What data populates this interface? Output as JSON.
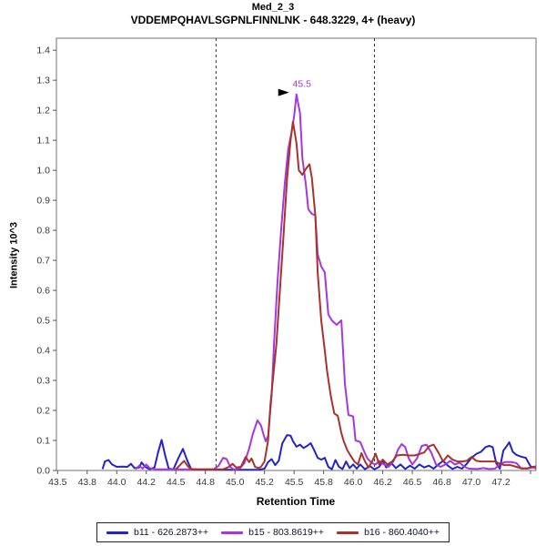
{
  "header": {
    "title": "Med_2_3",
    "subtitle": "VDDEMPQHAVLSGPNLFINNLNK - 648.3229, 4+ (heavy)"
  },
  "chart_data": {
    "type": "line",
    "title": "Med_2_3",
    "subtitle": "VDDEMPQHAVLSGPNLFINNLNK - 648.3229, 4+ (heavy)",
    "xlabel": "Retention Time",
    "ylabel": "Intensity 10^3",
    "xlim": [
      43.49,
      47.546
    ],
    "ylim": [
      0,
      1.44
    ],
    "grid": false,
    "legend_position": "bottom",
    "frame_color": "#8a8a8a",
    "boundary_lines": {
      "color": "#333333",
      "values": [
        44.84,
        46.18
      ]
    },
    "annotation": {
      "text": "45.5",
      "x": 45.52,
      "y": 1.253,
      "color": "#A636E0",
      "arrow_color": "#000000"
    },
    "x_ticks": [
      {
        "v": 43.5,
        "label": "43.5"
      },
      {
        "v": 43.75,
        "label": "43.8"
      },
      {
        "v": 44.0,
        "label": "44.0"
      },
      {
        "v": 44.25,
        "label": "44.2"
      },
      {
        "v": 44.5,
        "label": "44.5"
      },
      {
        "v": 44.75,
        "label": "44.8"
      },
      {
        "v": 45.0,
        "label": "45.0"
      },
      {
        "v": 45.25,
        "label": "45.2"
      },
      {
        "v": 45.5,
        "label": "45.5"
      },
      {
        "v": 45.75,
        "label": "45.8"
      },
      {
        "v": 46.0,
        "label": "46.0"
      },
      {
        "v": 46.25,
        "label": "46.2"
      },
      {
        "v": 46.5,
        "label": "46.5"
      },
      {
        "v": 46.75,
        "label": "46.8"
      },
      {
        "v": 47.0,
        "label": "47.0"
      },
      {
        "v": 47.25,
        "label": "47.2"
      },
      {
        "v": 47.5,
        "label": ""
      }
    ],
    "y_ticks": [
      {
        "v": 0.0,
        "label": "0.0"
      },
      {
        "v": 0.1,
        "label": "0.1"
      },
      {
        "v": 0.2,
        "label": "0.2"
      },
      {
        "v": 0.3,
        "label": "0.3"
      },
      {
        "v": 0.4,
        "label": "0.4"
      },
      {
        "v": 0.5,
        "label": "0.5"
      },
      {
        "v": 0.6,
        "label": "0.6"
      },
      {
        "v": 0.7,
        "label": "0.7"
      },
      {
        "v": 0.8,
        "label": "0.8"
      },
      {
        "v": 0.9,
        "label": "0.9"
      },
      {
        "v": 1.0,
        "label": "1.0"
      },
      {
        "v": 1.1,
        "label": "1.1"
      },
      {
        "v": 1.2,
        "label": "1.2"
      },
      {
        "v": 1.3,
        "label": "1.3"
      },
      {
        "v": 1.4,
        "label": "1.4"
      }
    ],
    "series": [
      {
        "name": "b11 - 626.2873++",
        "color": "#2323CE",
        "points": [
          [
            43.88,
            0.005
          ],
          [
            43.9,
            0.03
          ],
          [
            43.93,
            0.035
          ],
          [
            43.96,
            0.02
          ],
          [
            44.0,
            0.012
          ],
          [
            44.05,
            0.013
          ],
          [
            44.09,
            0.012
          ],
          [
            44.12,
            0.022
          ],
          [
            44.15,
            0.008
          ],
          [
            44.19,
            0.01
          ],
          [
            44.21,
            0.027
          ],
          [
            44.24,
            0.012
          ],
          [
            44.28,
            0.004
          ],
          [
            44.32,
            0.01
          ],
          [
            44.35,
            0.06
          ],
          [
            44.38,
            0.102
          ],
          [
            44.41,
            0.05
          ],
          [
            44.44,
            0.006
          ],
          [
            44.48,
            0.004
          ],
          [
            44.52,
            0.04
          ],
          [
            44.56,
            0.072
          ],
          [
            44.6,
            0.03
          ],
          [
            44.63,
            0.005
          ],
          [
            44.7,
            0.002
          ],
          [
            45.2,
            0.002
          ],
          [
            45.25,
            0.006
          ],
          [
            45.28,
            0.028
          ],
          [
            45.31,
            0.038
          ],
          [
            45.34,
            0.018
          ],
          [
            45.37,
            0.032
          ],
          [
            45.4,
            0.09
          ],
          [
            45.44,
            0.118
          ],
          [
            45.47,
            0.116
          ],
          [
            45.49,
            0.098
          ],
          [
            45.52,
            0.079
          ],
          [
            45.55,
            0.086
          ],
          [
            45.58,
            0.075
          ],
          [
            45.61,
            0.082
          ],
          [
            45.64,
            0.091
          ],
          [
            45.67,
            0.068
          ],
          [
            45.7,
            0.042
          ],
          [
            45.73,
            0.036
          ],
          [
            45.76,
            0.042
          ],
          [
            45.79,
            0.012
          ],
          [
            45.82,
            0.004
          ],
          [
            45.85,
            0.035
          ],
          [
            45.88,
            0.012
          ],
          [
            45.91,
            0.005
          ],
          [
            45.94,
            0.03
          ],
          [
            45.97,
            0.008
          ],
          [
            46.0,
            0.02
          ],
          [
            46.03,
            0.006
          ],
          [
            46.06,
            0.02
          ],
          [
            46.1,
            0.004
          ],
          [
            46.14,
            0.015
          ],
          [
            46.18,
            0.004
          ],
          [
            46.22,
            0.012
          ],
          [
            46.25,
            0.03
          ],
          [
            46.28,
            0.01
          ],
          [
            46.32,
            0.026
          ],
          [
            46.36,
            0.008
          ],
          [
            46.4,
            0.02
          ],
          [
            46.44,
            0.005
          ],
          [
            46.48,
            0.016
          ],
          [
            46.52,
            0.006
          ],
          [
            46.56,
            0.02
          ],
          [
            46.6,
            0.01
          ],
          [
            46.64,
            0.016
          ],
          [
            46.68,
            0.006
          ],
          [
            46.72,
            0.02
          ],
          [
            46.76,
            0.032
          ],
          [
            46.8,
            0.016
          ],
          [
            46.84,
            0.005
          ],
          [
            46.88,
            0.012
          ],
          [
            46.92,
            0.006
          ],
          [
            46.96,
            0.022
          ],
          [
            47.0,
            0.042
          ],
          [
            47.04,
            0.055
          ],
          [
            47.08,
            0.062
          ],
          [
            47.12,
            0.078
          ],
          [
            47.15,
            0.082
          ],
          [
            47.18,
            0.078
          ],
          [
            47.21,
            0.024
          ],
          [
            47.24,
            0.006
          ],
          [
            47.27,
            0.066
          ],
          [
            47.3,
            0.082
          ],
          [
            47.32,
            0.094
          ],
          [
            47.35,
            0.062
          ],
          [
            47.38,
            0.052
          ],
          [
            47.42,
            0.046
          ],
          [
            47.46,
            0.042
          ],
          [
            47.5,
            0.014
          ],
          [
            47.55,
            0.006
          ]
        ]
      },
      {
        "name": "b15 - 803.8619++",
        "color": "#A636E0",
        "points": [
          [
            44.16,
            0.004
          ],
          [
            44.19,
            0.016
          ],
          [
            44.22,
            0.006
          ],
          [
            44.25,
            0.02
          ],
          [
            44.28,
            0.008
          ],
          [
            44.32,
            0.004
          ],
          [
            44.6,
            0.004
          ],
          [
            44.82,
            0.004
          ],
          [
            44.86,
            0.015
          ],
          [
            44.9,
            0.042
          ],
          [
            44.93,
            0.038
          ],
          [
            44.96,
            0.012
          ],
          [
            44.99,
            0.003
          ],
          [
            45.04,
            0.006
          ],
          [
            45.08,
            0.025
          ],
          [
            45.12,
            0.073
          ],
          [
            45.15,
            0.12
          ],
          [
            45.19,
            0.167
          ],
          [
            45.22,
            0.15
          ],
          [
            45.24,
            0.122
          ],
          [
            45.26,
            0.097
          ],
          [
            45.28,
            0.115
          ],
          [
            45.31,
            0.25
          ],
          [
            45.33,
            0.42
          ],
          [
            45.36,
            0.63
          ],
          [
            45.39,
            0.8
          ],
          [
            45.42,
            0.95
          ],
          [
            45.45,
            1.07
          ],
          [
            45.48,
            1.13
          ],
          [
            45.5,
            1.18
          ],
          [
            45.52,
            1.253
          ],
          [
            45.55,
            1.19
          ],
          [
            45.57,
            1.04
          ],
          [
            45.6,
            0.95
          ],
          [
            45.62,
            0.87
          ],
          [
            45.65,
            0.855
          ],
          [
            45.68,
            0.85
          ],
          [
            45.7,
            0.72
          ],
          [
            45.73,
            0.68
          ],
          [
            45.76,
            0.66
          ],
          [
            45.79,
            0.52
          ],
          [
            45.82,
            0.5
          ],
          [
            45.86,
            0.485
          ],
          [
            45.9,
            0.5
          ],
          [
            45.93,
            0.29
          ],
          [
            45.96,
            0.185
          ],
          [
            46.0,
            0.18
          ],
          [
            46.02,
            0.1
          ],
          [
            46.06,
            0.095
          ],
          [
            46.09,
            0.066
          ],
          [
            46.12,
            0.04
          ],
          [
            46.16,
            0.024
          ],
          [
            46.19,
            0.02
          ],
          [
            46.22,
            0.032
          ],
          [
            46.26,
            0.02
          ],
          [
            46.3,
            0.012
          ],
          [
            46.34,
            0.03
          ],
          [
            46.38,
            0.07
          ],
          [
            46.41,
            0.088
          ],
          [
            46.44,
            0.078
          ],
          [
            46.47,
            0.04
          ],
          [
            46.5,
            0.02
          ],
          [
            46.54,
            0.04
          ],
          [
            46.58,
            0.082
          ],
          [
            46.62,
            0.086
          ],
          [
            46.66,
            0.06
          ],
          [
            46.7,
            0.02
          ],
          [
            46.74,
            0.012
          ],
          [
            46.78,
            0.02
          ],
          [
            46.82,
            0.032
          ],
          [
            46.86,
            0.02
          ],
          [
            46.9,
            0.026
          ],
          [
            46.94,
            0.012
          ],
          [
            46.98,
            0.006
          ],
          [
            47.05,
            0.005
          ],
          [
            47.1,
            0.008
          ],
          [
            47.15,
            0.005
          ],
          [
            47.2,
            0.006
          ],
          [
            47.24,
            0.02
          ],
          [
            47.28,
            0.028
          ],
          [
            47.34,
            0.028
          ],
          [
            47.38,
            0.025
          ],
          [
            47.42,
            0.008
          ],
          [
            47.47,
            0.006
          ],
          [
            47.52,
            0.01
          ],
          [
            47.55,
            0.008
          ]
        ]
      },
      {
        "name": "b16 - 860.4040++",
        "color": "#A8332B",
        "points": [
          [
            44.5,
            0.004
          ],
          [
            44.54,
            0.02
          ],
          [
            44.57,
            0.032
          ],
          [
            44.6,
            0.015
          ],
          [
            44.63,
            0.004
          ],
          [
            44.9,
            0.004
          ],
          [
            44.95,
            0.012
          ],
          [
            44.98,
            0.022
          ],
          [
            45.01,
            0.01
          ],
          [
            45.05,
            0.012
          ],
          [
            45.09,
            0.045
          ],
          [
            45.12,
            0.028
          ],
          [
            45.14,
            0.04
          ],
          [
            45.17,
            0.012
          ],
          [
            45.2,
            0.008
          ],
          [
            45.22,
            0.012
          ],
          [
            45.25,
            0.03
          ],
          [
            45.28,
            0.1
          ],
          [
            45.3,
            0.22
          ],
          [
            45.32,
            0.3
          ],
          [
            45.35,
            0.42
          ],
          [
            45.38,
            0.6
          ],
          [
            45.41,
            0.78
          ],
          [
            45.44,
            0.97
          ],
          [
            45.47,
            1.1
          ],
          [
            45.49,
            1.162
          ],
          [
            45.52,
            1.09
          ],
          [
            45.54,
            1.0
          ],
          [
            45.57,
            0.985
          ],
          [
            45.6,
            1.005
          ],
          [
            45.63,
            1.02
          ],
          [
            45.65,
            0.975
          ],
          [
            45.68,
            0.85
          ],
          [
            45.7,
            0.66
          ],
          [
            45.73,
            0.5
          ],
          [
            45.76,
            0.4
          ],
          [
            45.78,
            0.33
          ],
          [
            45.81,
            0.25
          ],
          [
            45.84,
            0.19
          ],
          [
            45.87,
            0.182
          ],
          [
            45.9,
            0.125
          ],
          [
            45.92,
            0.098
          ],
          [
            45.95,
            0.068
          ],
          [
            45.98,
            0.048
          ],
          [
            46.01,
            0.03
          ],
          [
            46.04,
            0.02
          ],
          [
            46.07,
            0.058
          ],
          [
            46.1,
            0.03
          ],
          [
            46.13,
            0.01
          ],
          [
            46.16,
            0.03
          ],
          [
            46.19,
            0.056
          ],
          [
            46.22,
            0.02
          ],
          [
            46.25,
            0.036
          ],
          [
            46.29,
            0.02
          ],
          [
            46.33,
            0.03
          ],
          [
            46.37,
            0.05
          ],
          [
            46.42,
            0.052
          ],
          [
            46.47,
            0.05
          ],
          [
            46.52,
            0.05
          ],
          [
            46.56,
            0.055
          ],
          [
            46.6,
            0.06
          ],
          [
            46.64,
            0.08
          ],
          [
            46.68,
            0.086
          ],
          [
            46.72,
            0.06
          ],
          [
            46.76,
            0.03
          ],
          [
            46.8,
            0.05
          ],
          [
            46.84,
            0.036
          ],
          [
            46.88,
            0.03
          ],
          [
            46.92,
            0.03
          ],
          [
            46.96,
            0.032
          ],
          [
            47.0,
            0.045
          ],
          [
            47.04,
            0.032
          ],
          [
            47.08,
            0.03
          ],
          [
            47.12,
            0.03
          ],
          [
            47.16,
            0.03
          ],
          [
            47.2,
            0.03
          ],
          [
            47.24,
            0.022
          ],
          [
            47.28,
            0.018
          ],
          [
            47.33,
            0.018
          ],
          [
            47.38,
            0.012
          ],
          [
            47.43,
            0.006
          ],
          [
            47.48,
            0.008
          ],
          [
            47.52,
            0.012
          ],
          [
            47.55,
            0.014
          ]
        ]
      }
    ]
  }
}
